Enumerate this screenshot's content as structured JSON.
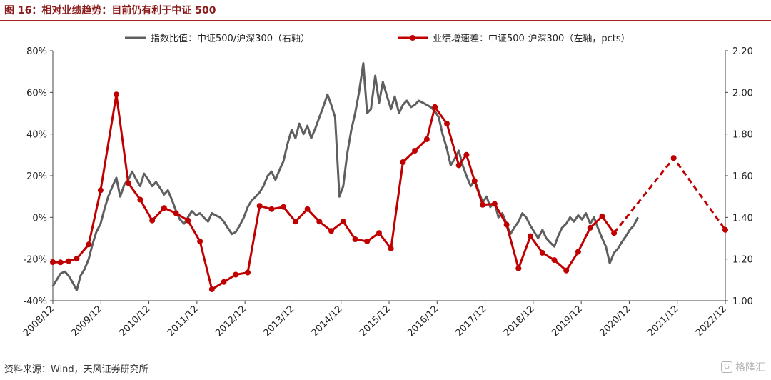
{
  "header": {
    "title": "图 16：相对业绩趋势：目前仍有利于中证 500"
  },
  "footer": {
    "source": "资料来源：Wind，天风证券研究所",
    "watermark": "格隆汇"
  },
  "chart_data": {
    "type": "line",
    "title": "图 16：相对业绩趋势：目前仍有利于中证 500",
    "x_ticks": [
      "2008/12",
      "2009/12",
      "2010/12",
      "2011/12",
      "2012/12",
      "2013/12",
      "2014/12",
      "2015/12",
      "2016/12",
      "2017/12",
      "2018/12",
      "2019/12",
      "2020/12",
      "2021/12",
      "2022/12"
    ],
    "y_left": {
      "ticks": [
        "80%",
        "60%",
        "40%",
        "20%",
        "0%",
        "-20%",
        "-40%"
      ],
      "range": [
        -40,
        80
      ]
    },
    "y_right": {
      "ticks": [
        "2.20",
        "2.00",
        "1.80",
        "1.60",
        "1.40",
        "1.20",
        "1.00"
      ],
      "range": [
        1.0,
        2.2
      ]
    },
    "legend": {
      "position": "top"
    },
    "colors": {
      "index_ratio": "#5f5f5f",
      "growth_diff": "#C00000"
    },
    "series": [
      {
        "name": "指数比值：中证500/沪深300（右轴）",
        "axis": "right",
        "style": "line",
        "points": [
          [
            2008.92,
            1.07
          ],
          [
            2009.0,
            1.1
          ],
          [
            2009.08,
            1.13
          ],
          [
            2009.17,
            1.14
          ],
          [
            2009.25,
            1.12
          ],
          [
            2009.33,
            1.09
          ],
          [
            2009.42,
            1.05
          ],
          [
            2009.5,
            1.12
          ],
          [
            2009.58,
            1.15
          ],
          [
            2009.67,
            1.2
          ],
          [
            2009.75,
            1.27
          ],
          [
            2009.83,
            1.33
          ],
          [
            2009.92,
            1.37
          ],
          [
            2010.0,
            1.44
          ],
          [
            2010.08,
            1.5
          ],
          [
            2010.17,
            1.55
          ],
          [
            2010.25,
            1.59
          ],
          [
            2010.33,
            1.5
          ],
          [
            2010.42,
            1.56
          ],
          [
            2010.5,
            1.58
          ],
          [
            2010.58,
            1.62
          ],
          [
            2010.67,
            1.58
          ],
          [
            2010.75,
            1.55
          ],
          [
            2010.83,
            1.61
          ],
          [
            2010.92,
            1.58
          ],
          [
            2011.0,
            1.55
          ],
          [
            2011.08,
            1.57
          ],
          [
            2011.17,
            1.54
          ],
          [
            2011.25,
            1.51
          ],
          [
            2011.33,
            1.53
          ],
          [
            2011.42,
            1.48
          ],
          [
            2011.5,
            1.43
          ],
          [
            2011.58,
            1.39
          ],
          [
            2011.67,
            1.37
          ],
          [
            2011.75,
            1.4
          ],
          [
            2011.83,
            1.43
          ],
          [
            2011.92,
            1.41
          ],
          [
            2012.0,
            1.42
          ],
          [
            2012.08,
            1.4
          ],
          [
            2012.17,
            1.38
          ],
          [
            2012.25,
            1.42
          ],
          [
            2012.33,
            1.41
          ],
          [
            2012.42,
            1.4
          ],
          [
            2012.5,
            1.38
          ],
          [
            2012.58,
            1.35
          ],
          [
            2012.67,
            1.32
          ],
          [
            2012.75,
            1.33
          ],
          [
            2012.83,
            1.36
          ],
          [
            2012.92,
            1.4
          ],
          [
            2013.0,
            1.45
          ],
          [
            2013.08,
            1.48
          ],
          [
            2013.17,
            1.5
          ],
          [
            2013.25,
            1.52
          ],
          [
            2013.33,
            1.55
          ],
          [
            2013.42,
            1.6
          ],
          [
            2013.5,
            1.62
          ],
          [
            2013.58,
            1.58
          ],
          [
            2013.67,
            1.63
          ],
          [
            2013.75,
            1.67
          ],
          [
            2013.83,
            1.75
          ],
          [
            2013.92,
            1.82
          ],
          [
            2014.0,
            1.78
          ],
          [
            2014.08,
            1.85
          ],
          [
            2014.17,
            1.8
          ],
          [
            2014.25,
            1.84
          ],
          [
            2014.33,
            1.78
          ],
          [
            2014.42,
            1.83
          ],
          [
            2014.5,
            1.88
          ],
          [
            2014.58,
            1.93
          ],
          [
            2014.67,
            1.99
          ],
          [
            2014.75,
            1.94
          ],
          [
            2014.83,
            1.88
          ],
          [
            2014.92,
            1.5
          ],
          [
            2015.0,
            1.55
          ],
          [
            2015.08,
            1.7
          ],
          [
            2015.17,
            1.82
          ],
          [
            2015.25,
            1.9
          ],
          [
            2015.33,
            2.0
          ],
          [
            2015.42,
            2.14
          ],
          [
            2015.5,
            1.9
          ],
          [
            2015.58,
            1.92
          ],
          [
            2015.67,
            2.08
          ],
          [
            2015.75,
            1.95
          ],
          [
            2015.83,
            2.05
          ],
          [
            2015.92,
            1.98
          ],
          [
            2016.0,
            1.92
          ],
          [
            2016.08,
            1.98
          ],
          [
            2016.17,
            1.9
          ],
          [
            2016.25,
            1.94
          ],
          [
            2016.33,
            1.96
          ],
          [
            2016.42,
            1.93
          ],
          [
            2016.5,
            1.94
          ],
          [
            2016.58,
            1.96
          ],
          [
            2016.67,
            1.95
          ],
          [
            2016.75,
            1.94
          ],
          [
            2016.83,
            1.93
          ],
          [
            2016.92,
            1.91
          ],
          [
            2017.0,
            1.88
          ],
          [
            2017.08,
            1.8
          ],
          [
            2017.17,
            1.73
          ],
          [
            2017.25,
            1.65
          ],
          [
            2017.33,
            1.68
          ],
          [
            2017.42,
            1.72
          ],
          [
            2017.5,
            1.65
          ],
          [
            2017.58,
            1.6
          ],
          [
            2017.67,
            1.55
          ],
          [
            2017.75,
            1.58
          ],
          [
            2017.83,
            1.53
          ],
          [
            2017.92,
            1.47
          ],
          [
            2018.0,
            1.5
          ],
          [
            2018.08,
            1.45
          ],
          [
            2018.17,
            1.47
          ],
          [
            2018.25,
            1.4
          ],
          [
            2018.33,
            1.42
          ],
          [
            2018.42,
            1.37
          ],
          [
            2018.5,
            1.32
          ],
          [
            2018.58,
            1.35
          ],
          [
            2018.67,
            1.38
          ],
          [
            2018.75,
            1.42
          ],
          [
            2018.83,
            1.4
          ],
          [
            2018.92,
            1.36
          ],
          [
            2019.0,
            1.33
          ],
          [
            2019.08,
            1.3
          ],
          [
            2019.17,
            1.34
          ],
          [
            2019.25,
            1.3
          ],
          [
            2019.33,
            1.28
          ],
          [
            2019.42,
            1.26
          ],
          [
            2019.5,
            1.31
          ],
          [
            2019.58,
            1.35
          ],
          [
            2019.67,
            1.37
          ],
          [
            2019.75,
            1.4
          ],
          [
            2019.83,
            1.38
          ],
          [
            2019.92,
            1.41
          ],
          [
            2020.0,
            1.39
          ],
          [
            2020.08,
            1.42
          ],
          [
            2020.17,
            1.37
          ],
          [
            2020.25,
            1.4
          ],
          [
            2020.33,
            1.35
          ],
          [
            2020.42,
            1.3
          ],
          [
            2020.5,
            1.26
          ],
          [
            2020.58,
            1.18
          ],
          [
            2020.67,
            1.23
          ],
          [
            2020.75,
            1.25
          ],
          [
            2020.83,
            1.28
          ],
          [
            2020.92,
            1.31
          ],
          [
            2021.0,
            1.34
          ],
          [
            2021.08,
            1.36
          ],
          [
            2021.17,
            1.4
          ]
        ]
      },
      {
        "name": "业绩增速差：中证500-沪深300（左轴，pcts）",
        "axis": "left",
        "style": "line-marker",
        "points": [
          [
            2008.92,
            -21.5
          ],
          [
            2009.08,
            -21.6
          ],
          [
            2009.25,
            -21.0
          ],
          [
            2009.42,
            -19.8
          ],
          [
            2009.67,
            -13.0
          ],
          [
            2009.92,
            13.0
          ],
          [
            2010.25,
            59.0
          ],
          [
            2010.5,
            16.5
          ],
          [
            2010.75,
            8.5
          ],
          [
            2011.0,
            -1.5
          ],
          [
            2011.25,
            4.5
          ],
          [
            2011.5,
            2.0
          ],
          [
            2011.75,
            -1.5
          ],
          [
            2012.0,
            -11.5
          ],
          [
            2012.25,
            -34.5
          ],
          [
            2012.5,
            -31.0
          ],
          [
            2012.75,
            -27.5
          ],
          [
            2013.0,
            -26.5
          ],
          [
            2013.25,
            5.5
          ],
          [
            2013.5,
            4.0
          ],
          [
            2013.75,
            5.0
          ],
          [
            2014.0,
            -2.0
          ],
          [
            2014.25,
            4.0
          ],
          [
            2014.5,
            -2.0
          ],
          [
            2014.75,
            -6.5
          ],
          [
            2015.0,
            -2.0
          ],
          [
            2015.25,
            -10.5
          ],
          [
            2015.5,
            -11.5
          ],
          [
            2015.75,
            -7.5
          ],
          [
            2016.0,
            -15.0
          ],
          [
            2016.25,
            26.5
          ],
          [
            2016.5,
            32.0
          ],
          [
            2016.75,
            37.5
          ],
          [
            2016.92,
            53.0
          ],
          [
            2017.17,
            45.0
          ],
          [
            2017.42,
            25.0
          ],
          [
            2017.58,
            30.0
          ],
          [
            2017.75,
            17.5
          ],
          [
            2017.92,
            6.0
          ],
          [
            2018.17,
            6.5
          ],
          [
            2018.42,
            -3.5
          ],
          [
            2018.67,
            -24.5
          ],
          [
            2018.92,
            -9.0
          ],
          [
            2019.17,
            -17.0
          ],
          [
            2019.42,
            -20.5
          ],
          [
            2019.67,
            -25.5
          ],
          [
            2019.92,
            -16.5
          ],
          [
            2020.17,
            -5.0
          ],
          [
            2020.42,
            0.5
          ],
          [
            2020.67,
            -7.5
          ]
        ]
      },
      {
        "name": "",
        "axis": "left",
        "style": "dashed-marker",
        "points": [
          [
            2020.67,
            -7.5
          ],
          [
            2021.92,
            28.5
          ],
          [
            2023.0,
            -6.0
          ]
        ]
      }
    ]
  }
}
